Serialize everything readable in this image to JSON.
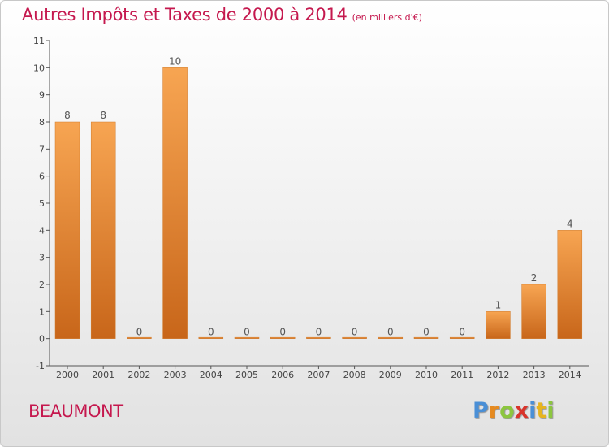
{
  "header": {
    "title": "Autres Impôts et Taxes de 2000 à 2014",
    "subtitle": "(en milliers d'€)"
  },
  "footer": {
    "commune": "BEAUMONT",
    "logo": "Proxiti"
  },
  "colors": {
    "title": "#c5184e",
    "bar_light": "#f7a552",
    "bar_dark": "#c8661a"
  },
  "chart_data": {
    "type": "bar",
    "title": "Autres Impôts et Taxes de 2000 à 2014",
    "subtitle": "(en milliers d'€)",
    "categories": [
      "2000",
      "2001",
      "2002",
      "2003",
      "2004",
      "2005",
      "2006",
      "2007",
      "2008",
      "2009",
      "2010",
      "2011",
      "2012",
      "2013",
      "2014"
    ],
    "values": [
      8,
      8,
      0,
      10,
      0,
      0,
      0,
      0,
      0,
      0,
      0,
      0,
      1,
      2,
      4
    ],
    "data_labels": [
      "8",
      "8",
      "0",
      "10",
      "0",
      "0",
      "0",
      "0",
      "0",
      "0",
      "0",
      "0",
      "1",
      "2",
      "4"
    ],
    "y_ticks": [
      "-1",
      "0",
      "1",
      "2",
      "3",
      "4",
      "5",
      "6",
      "7",
      "8",
      "9",
      "10",
      "11"
    ],
    "ylim": [
      -1,
      11
    ],
    "grid": false,
    "legend": "none"
  }
}
